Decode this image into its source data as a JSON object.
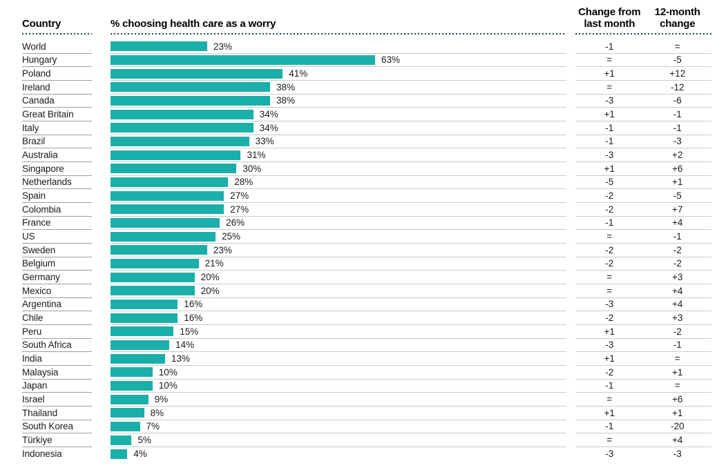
{
  "header": {
    "country": "Country",
    "bar_title": "% choosing health care as a worry",
    "change_last_month": "Change from\nlast month",
    "change_12_month": "12-month\nchange"
  },
  "colors": {
    "bar": "#1BAFAA",
    "dotted_rule": "#1D4150",
    "row_line": "#CBCBCB",
    "label_line": "#9E9E9E",
    "text": "#1A1A1A"
  },
  "chart_data": {
    "type": "bar",
    "orientation": "horizontal",
    "title": "% choosing health care as a worry",
    "unit": "%",
    "xlim": [
      0,
      108
    ],
    "grid": false,
    "legend": "none",
    "columns": [
      "Country",
      "% choosing health care as a worry",
      "Change from last month",
      "12-month change"
    ],
    "rows": [
      {
        "country": "World",
        "value": 23,
        "value_label": "23%",
        "change_last_month": "-1",
        "change_12_month": "="
      },
      {
        "country": "Hungary",
        "value": 63,
        "value_label": "63%",
        "change_last_month": "=",
        "change_12_month": "-5"
      },
      {
        "country": "Poland",
        "value": 41,
        "value_label": "41%",
        "change_last_month": "+1",
        "change_12_month": "+12"
      },
      {
        "country": "Ireland",
        "value": 38,
        "value_label": "38%",
        "change_last_month": "=",
        "change_12_month": "-12"
      },
      {
        "country": "Canada",
        "value": 38,
        "value_label": "38%",
        "change_last_month": "-3",
        "change_12_month": "-6"
      },
      {
        "country": "Great Britain",
        "value": 34,
        "value_label": "34%",
        "change_last_month": "+1",
        "change_12_month": "-1"
      },
      {
        "country": "Italy",
        "value": 34,
        "value_label": "34%",
        "change_last_month": "-1",
        "change_12_month": "-1"
      },
      {
        "country": "Brazil",
        "value": 33,
        "value_label": "33%",
        "change_last_month": "-1",
        "change_12_month": "-3"
      },
      {
        "country": "Australia",
        "value": 31,
        "value_label": "31%",
        "change_last_month": "-3",
        "change_12_month": "+2"
      },
      {
        "country": "Singapore",
        "value": 30,
        "value_label": "30%",
        "change_last_month": "+1",
        "change_12_month": "+6"
      },
      {
        "country": "Netherlands",
        "value": 28,
        "value_label": "28%",
        "change_last_month": "-5",
        "change_12_month": "+1"
      },
      {
        "country": "Spain",
        "value": 27,
        "value_label": "27%",
        "change_last_month": "-2",
        "change_12_month": "-5"
      },
      {
        "country": "Colombia",
        "value": 27,
        "value_label": "27%",
        "change_last_month": "-2",
        "change_12_month": "+7"
      },
      {
        "country": "France",
        "value": 26,
        "value_label": "26%",
        "change_last_month": "-1",
        "change_12_month": "+4"
      },
      {
        "country": "US",
        "value": 25,
        "value_label": "25%",
        "change_last_month": "=",
        "change_12_month": "-1"
      },
      {
        "country": "Sweden",
        "value": 23,
        "value_label": "23%",
        "change_last_month": "-2",
        "change_12_month": "-2"
      },
      {
        "country": "Belgium",
        "value": 21,
        "value_label": "21%",
        "change_last_month": "-2",
        "change_12_month": "-2"
      },
      {
        "country": "Germany",
        "value": 20,
        "value_label": "20%",
        "change_last_month": "=",
        "change_12_month": "+3"
      },
      {
        "country": "Mexico",
        "value": 20,
        "value_label": "20%",
        "change_last_month": "=",
        "change_12_month": "+4"
      },
      {
        "country": "Argentina",
        "value": 16,
        "value_label": "16%",
        "change_last_month": "-3",
        "change_12_month": "+4"
      },
      {
        "country": "Chile",
        "value": 16,
        "value_label": "16%",
        "change_last_month": "-2",
        "change_12_month": "+3"
      },
      {
        "country": "Peru",
        "value": 15,
        "value_label": "15%",
        "change_last_month": "+1",
        "change_12_month": "-2"
      },
      {
        "country": "South Africa",
        "value": 14,
        "value_label": "14%",
        "change_last_month": "-3",
        "change_12_month": "-1"
      },
      {
        "country": "India",
        "value": 13,
        "value_label": "13%",
        "change_last_month": "+1",
        "change_12_month": "="
      },
      {
        "country": "Malaysia",
        "value": 10,
        "value_label": "10%",
        "change_last_month": "-2",
        "change_12_month": "+1"
      },
      {
        "country": "Japan",
        "value": 10,
        "value_label": "10%",
        "change_last_month": "-1",
        "change_12_month": "="
      },
      {
        "country": "Israel",
        "value": 9,
        "value_label": "9%",
        "change_last_month": "=",
        "change_12_month": "+6"
      },
      {
        "country": "Thailand",
        "value": 8,
        "value_label": "8%",
        "change_last_month": "+1",
        "change_12_month": "+1"
      },
      {
        "country": "South Korea",
        "value": 7,
        "value_label": "7%",
        "change_last_month": "-1",
        "change_12_month": "-20"
      },
      {
        "country": "Türkiye",
        "value": 5,
        "value_label": "5%",
        "change_last_month": "=",
        "change_12_month": "+4"
      },
      {
        "country": "Indonesia",
        "value": 4,
        "value_label": "4%",
        "change_last_month": "-3",
        "change_12_month": "-3"
      }
    ]
  }
}
